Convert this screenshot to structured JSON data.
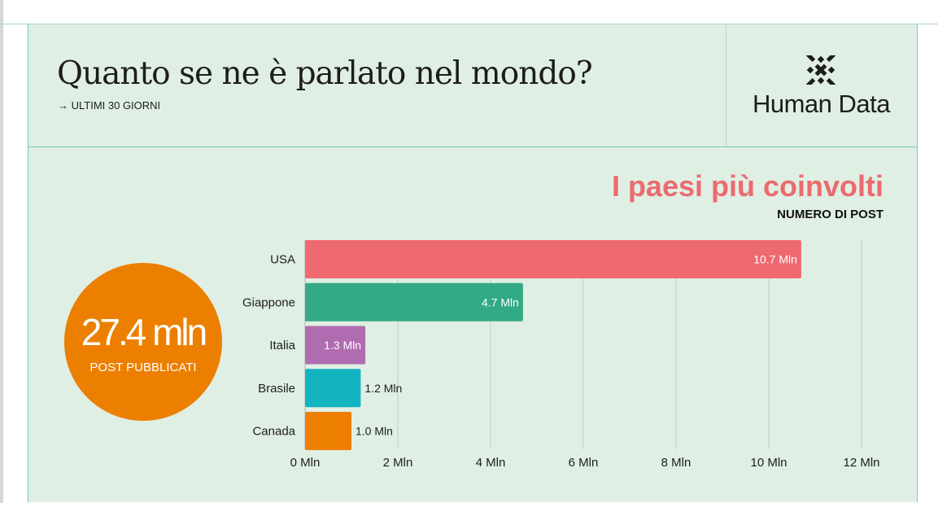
{
  "header": {
    "title": "Quanto se ne è parlato nel mondo?",
    "subtitle": "→ ULTIMI 30 GIORNI",
    "brand": "Human Data"
  },
  "kpi": {
    "value": "27.4 mln",
    "label": "POST PUBBLICATI",
    "color": "#ec7f00"
  },
  "chart_data": {
    "type": "bar",
    "orientation": "horizontal",
    "title": "I paesi più coinvolti",
    "subtitle": "NUMERO DI POST",
    "categories": [
      "USA",
      "Giappone",
      "Italia",
      "Brasile",
      "Canada"
    ],
    "values": [
      10.7,
      4.7,
      1.3,
      1.2,
      1.0
    ],
    "value_labels": [
      "10.7 Mln",
      "4.7 Mln",
      "1.3 Mln",
      "1.2 Mln",
      "1.0 Mln"
    ],
    "colors": [
      "#ee6a70",
      "#32aa86",
      "#b06cb1",
      "#13b3c0",
      "#ec7f00"
    ],
    "xticks": [
      0,
      2,
      4,
      6,
      8,
      10,
      12
    ],
    "xtick_labels": [
      "0 Mln",
      "2 Mln",
      "4 Mln",
      "6 Mln",
      "8 Mln",
      "10 Mln",
      "12 Mln"
    ],
    "xlim": [
      0,
      12
    ],
    "grid": true
  }
}
